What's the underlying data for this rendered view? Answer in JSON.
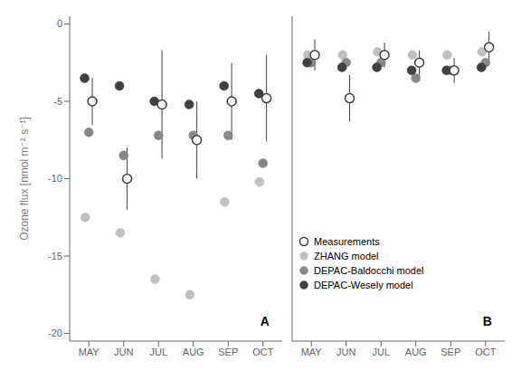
{
  "chart_data": [
    {
      "type": "scatter",
      "categories": [
        "MAY",
        "JUN",
        "JUL",
        "AUG",
        "SEP",
        "OCT"
      ],
      "ylabel": "Ozone flux [nmol m⁻² s⁻¹]",
      "ylim": [
        -20.5,
        0.5
      ],
      "yticks": [
        0,
        -5,
        -10,
        -15,
        -20
      ],
      "grid": false,
      "annotations": [
        "A"
      ],
      "series": [
        {
          "name": "Measurements",
          "color": "#404040",
          "marker": "open_circle",
          "values": [
            -5.0,
            -10.0,
            -5.2,
            -7.5,
            -5.0,
            -4.8
          ],
          "yerr": [
            1.5,
            2.0,
            3.5,
            2.5,
            2.5,
            2.8
          ]
        },
        {
          "name": "ZHANG model",
          "color": "#c0c0c0",
          "marker": "circle",
          "values": [
            -12.5,
            -13.5,
            -16.5,
            -17.5,
            -11.5,
            -10.2
          ]
        },
        {
          "name": "DEPAC-Baldocchi model",
          "color": "#888888",
          "marker": "circle",
          "values": [
            -7.0,
            -8.5,
            -7.2,
            -7.2,
            -7.2,
            -9.0
          ]
        },
        {
          "name": "DEPAC-Wesely model",
          "color": "#404040",
          "marker": "circle",
          "values": [
            -3.5,
            -4.0,
            -5.0,
            -5.2,
            -4.0,
            -4.5
          ]
        }
      ]
    },
    {
      "type": "scatter",
      "categories": [
        "MAY",
        "JUN",
        "JUL",
        "AUG",
        "SEP",
        "OCT"
      ],
      "ylim": [
        -20.5,
        0.5
      ],
      "yticks": [
        0,
        -5,
        -10,
        -15,
        -20
      ],
      "tick_labels": "x",
      "grid": false,
      "legend": "lower left",
      "annotations": [
        "B"
      ],
      "series": [
        {
          "name": "Measurements",
          "color": "#404040",
          "marker": "open_circle",
          "values": [
            -2.0,
            -4.8,
            -2.0,
            -2.5,
            -3.0,
            -1.5
          ],
          "yerr": [
            1.0,
            1.5,
            0.8,
            0.8,
            0.8,
            1.0
          ]
        },
        {
          "name": "ZHANG model",
          "color": "#c0c0c0",
          "marker": "circle",
          "values": [
            -2.0,
            -2.0,
            -1.8,
            -2.0,
            -2.0,
            -1.8
          ]
        },
        {
          "name": "DEPAC-Baldocchi model",
          "color": "#888888",
          "marker": "circle",
          "values": [
            -2.5,
            -2.5,
            -2.5,
            -3.5,
            -3.0,
            -2.5
          ]
        },
        {
          "name": "DEPAC-Wesely model",
          "color": "#404040",
          "marker": "circle",
          "values": [
            -2.5,
            -2.8,
            -2.8,
            -3.0,
            -3.0,
            -2.8
          ]
        }
      ]
    }
  ]
}
